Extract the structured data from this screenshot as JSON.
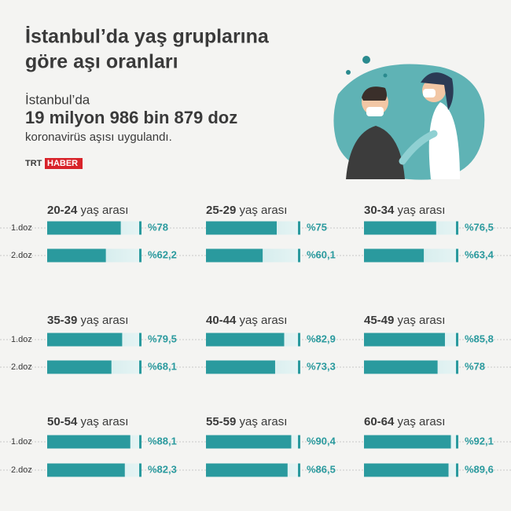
{
  "header": {
    "title_lines": [
      "İstanbul’da yaş gruplarına",
      "göre aşı oranları"
    ],
    "intro": "İstanbul’da",
    "highlight": "19 milyon 986 bin 879 doz",
    "outro": "koronavirüs aşısı uygulandı.",
    "brand": [
      "TRT",
      "HABER"
    ]
  },
  "doses": [
    "1.doz",
    "2.doz"
  ],
  "chart_data": [
    {
      "type": "bar",
      "title": "20-24",
      "subtitle": "yaş arası",
      "values": [
        78,
        62.2
      ],
      "value_labels": [
        "%78",
        "%62,2"
      ],
      "xlim": [
        0,
        100
      ],
      "color": "#2a9a9e"
    },
    {
      "type": "bar",
      "title": "25-29",
      "subtitle": "yaş arası",
      "values": [
        75,
        60.1
      ],
      "value_labels": [
        "%75",
        "%60,1"
      ],
      "xlim": [
        0,
        100
      ],
      "color": "#2a9a9e"
    },
    {
      "type": "bar",
      "title": "30-34",
      "subtitle": "yaş arası",
      "values": [
        76.5,
        63.4
      ],
      "value_labels": [
        "%76,5",
        "%63,4"
      ],
      "xlim": [
        0,
        100
      ],
      "color": "#2a9a9e"
    },
    {
      "type": "bar",
      "title": "35-39",
      "subtitle": "yaş arası",
      "values": [
        79.5,
        68.1
      ],
      "value_labels": [
        "%79,5",
        "%68,1"
      ],
      "xlim": [
        0,
        100
      ],
      "color": "#2a9a9e"
    },
    {
      "type": "bar",
      "title": "40-44",
      "subtitle": "yaş arası",
      "values": [
        82.9,
        73.3
      ],
      "value_labels": [
        "%82,9",
        "%73,3"
      ],
      "xlim": [
        0,
        100
      ],
      "color": "#2a9a9e"
    },
    {
      "type": "bar",
      "title": "45-49",
      "subtitle": "yaş arası",
      "values": [
        85.8,
        78
      ],
      "value_labels": [
        "%85,8",
        "%78"
      ],
      "xlim": [
        0,
        100
      ],
      "color": "#2a9a9e"
    },
    {
      "type": "bar",
      "title": "50-54",
      "subtitle": "yaş arası",
      "values": [
        88.1,
        82.3
      ],
      "value_labels": [
        "%88,1",
        "%82,3"
      ],
      "xlim": [
        0,
        100
      ],
      "color": "#2a9a9e"
    },
    {
      "type": "bar",
      "title": "55-59",
      "subtitle": "yaş arası",
      "values": [
        90.4,
        86.5
      ],
      "value_labels": [
        "%90,4",
        "%86,5"
      ],
      "xlim": [
        0,
        100
      ],
      "color": "#2a9a9e"
    },
    {
      "type": "bar",
      "title": "60-64",
      "subtitle": "yaş arası",
      "values": [
        92.1,
        89.6
      ],
      "value_labels": [
        "%92,1",
        "%89,6"
      ],
      "xlim": [
        0,
        100
      ],
      "color": "#2a9a9e"
    }
  ]
}
